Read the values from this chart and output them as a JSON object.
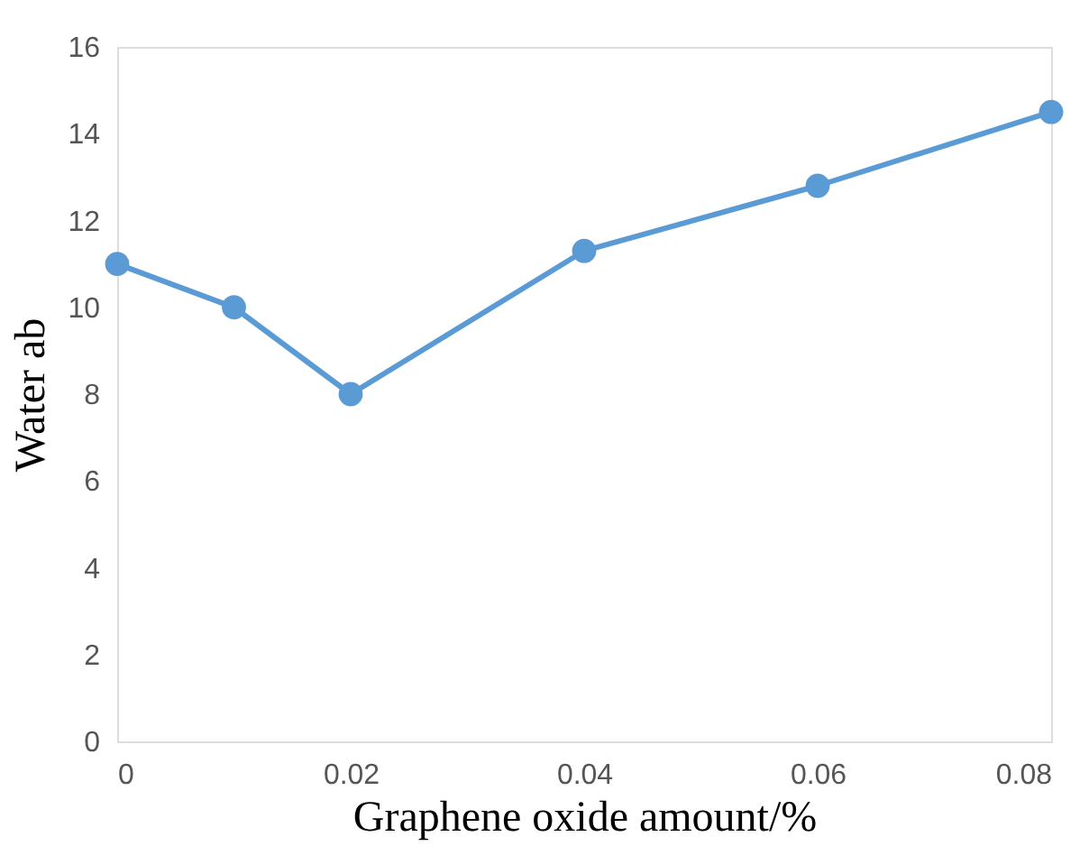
{
  "chart_data": {
    "type": "line",
    "xlabel": "Graphene oxide amount/%",
    "ylabel": "Water ab",
    "x": [
      0,
      0.01,
      0.02,
      0.04,
      0.06,
      0.08
    ],
    "series": [
      {
        "color": "#5b9bd5",
        "values": [
          11,
          10,
          8,
          11.3,
          12.8,
          14.5
        ]
      }
    ],
    "xlim": [
      0,
      0.08
    ],
    "xticks": [
      0,
      0.02,
      0.04,
      0.06,
      0.08
    ],
    "ylim": [
      0,
      16
    ],
    "yticks": [
      0,
      2,
      4,
      6,
      8,
      10,
      12,
      14,
      16
    ],
    "grid": false,
    "marker": "circle",
    "line_style": "solid"
  }
}
